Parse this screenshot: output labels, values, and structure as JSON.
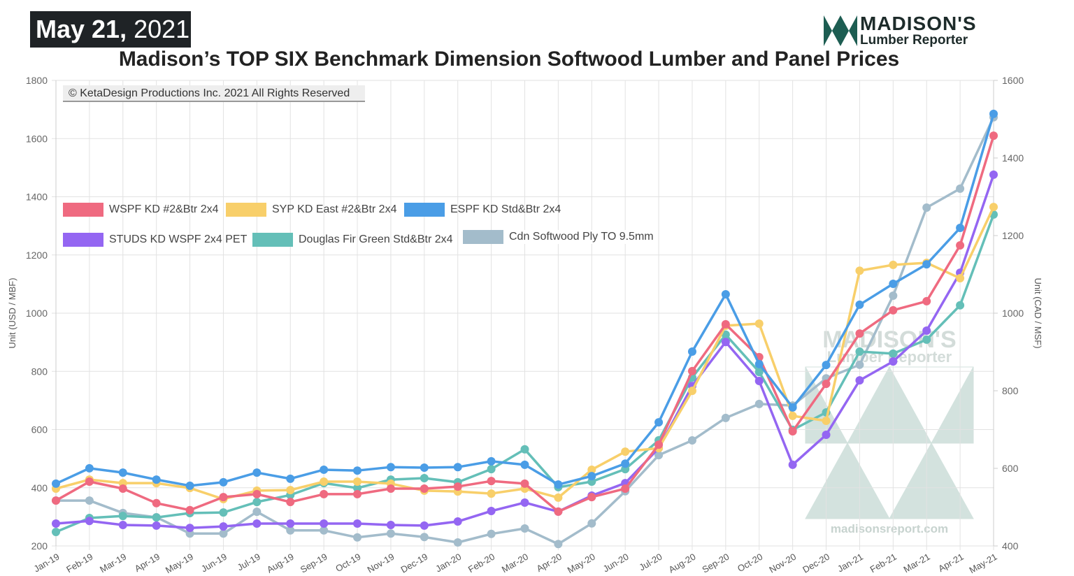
{
  "header": {
    "date_bold": "May 21,",
    "date_year": " 2021",
    "title": "Madison’s TOP SIX Benchmark Dimension Softwood Lumber and Panel Prices",
    "copyright": "© KetaDesign Productions Inc. 2021 All Rights Reserved"
  },
  "logo": {
    "line1": "MADISON'S",
    "line2": "Lumber Reporter",
    "watermark_url": "madisonsreport.com"
  },
  "chart_data": {
    "type": "line",
    "title": "Madison’s TOP SIX Benchmark Dimension Softwood Lumber and Panel Prices",
    "ylabel": "Unit (USD / MBF)",
    "y2label": "Unit (CAD / MSF)",
    "ylim": [
      200,
      1800
    ],
    "y2lim": [
      400,
      1600
    ],
    "yticks": [
      200,
      400,
      600,
      800,
      1000,
      1200,
      1400,
      1600,
      1800
    ],
    "y2ticks": [
      400,
      600,
      800,
      1000,
      1200,
      1400,
      1600
    ],
    "grid": true,
    "legend_placement": "upper-left",
    "categories": [
      "Jan-19",
      "Feb-19",
      "Mar-19",
      "Apr-19",
      "May-19",
      "Jun-19",
      "Jul-19",
      "Aug-19",
      "Sep-19",
      "Oct-19",
      "Nov-19",
      "Dec-19",
      "Jan-20",
      "Feb-20",
      "Mar-20",
      "Apr-20",
      "May-20",
      "Jun-20",
      "Jul-20",
      "Aug-20",
      "Sep-20",
      "Oct-20",
      "Nov-20",
      "Dec-20",
      "Jan-21",
      "Feb-21",
      "Mar-21",
      "Apr-21",
      "May-21"
    ],
    "series": [
      {
        "name": "WSPF KD #2&Btr 2x4",
        "color": "#ef6a80",
        "axis": "left",
        "values": [
          356,
          421,
          397,
          347,
          323,
          368,
          378,
          351,
          378,
          378,
          397,
          397,
          404,
          423,
          414,
          318,
          368,
          397,
          548,
          801,
          962,
          849,
          594,
          757,
          930,
          1010,
          1041,
          1233,
          1610
        ]
      },
      {
        "name": "SYP KD East #2&Btr 2x4",
        "color": "#f8cf6a",
        "axis": "left",
        "values": [
          397,
          428,
          416,
          416,
          399,
          361,
          390,
          392,
          421,
          421,
          414,
          390,
          387,
          380,
          397,
          366,
          462,
          524,
          536,
          733,
          957,
          964,
          647,
          630,
          1146,
          1166,
          1173,
          1120,
          1365
        ]
      },
      {
        "name": "ESPF KD Std&Btr 2x4",
        "color": "#4a9de6",
        "axis": "left",
        "values": [
          414,
          467,
          452,
          428,
          407,
          419,
          452,
          431,
          462,
          459,
          471,
          469,
          471,
          491,
          479,
          411,
          440,
          483,
          625,
          868,
          1065,
          825,
          676,
          822,
          1029,
          1101,
          1168,
          1293,
          1685
        ]
      },
      {
        "name": "STUDS KD WSPF 2x4 PET",
        "color": "#9466f2",
        "axis": "left",
        "values": [
          277,
          286,
          272,
          270,
          262,
          267,
          277,
          277,
          277,
          277,
          272,
          270,
          284,
          320,
          349,
          318,
          373,
          416,
          536,
          750,
          901,
          767,
          479,
          582,
          769,
          834,
          940,
          1139,
          1476
        ]
      },
      {
        "name": "Douglas Fir Green Std&Btr 2x4",
        "color": "#64bfb8",
        "axis": "left",
        "values": [
          248,
          296,
          303,
          298,
          313,
          315,
          351,
          375,
          416,
          399,
          428,
          433,
          419,
          464,
          532,
          402,
          421,
          464,
          563,
          779,
          926,
          798,
          599,
          659,
          868,
          861,
          909,
          1027,
          1339
        ]
      },
      {
        "name": "Cdn Softwood Ply TO 9.5mm",
        "color": "#a3bccb",
        "axis": "right",
        "values": [
          517,
          517,
          485,
          474,
          432,
          432,
          488,
          440,
          440,
          422,
          432,
          423,
          409,
          431,
          445,
          405,
          458,
          541,
          634,
          672,
          730,
          766,
          762,
          832,
          867,
          1045,
          1272,
          1321,
          1505
        ]
      }
    ]
  }
}
